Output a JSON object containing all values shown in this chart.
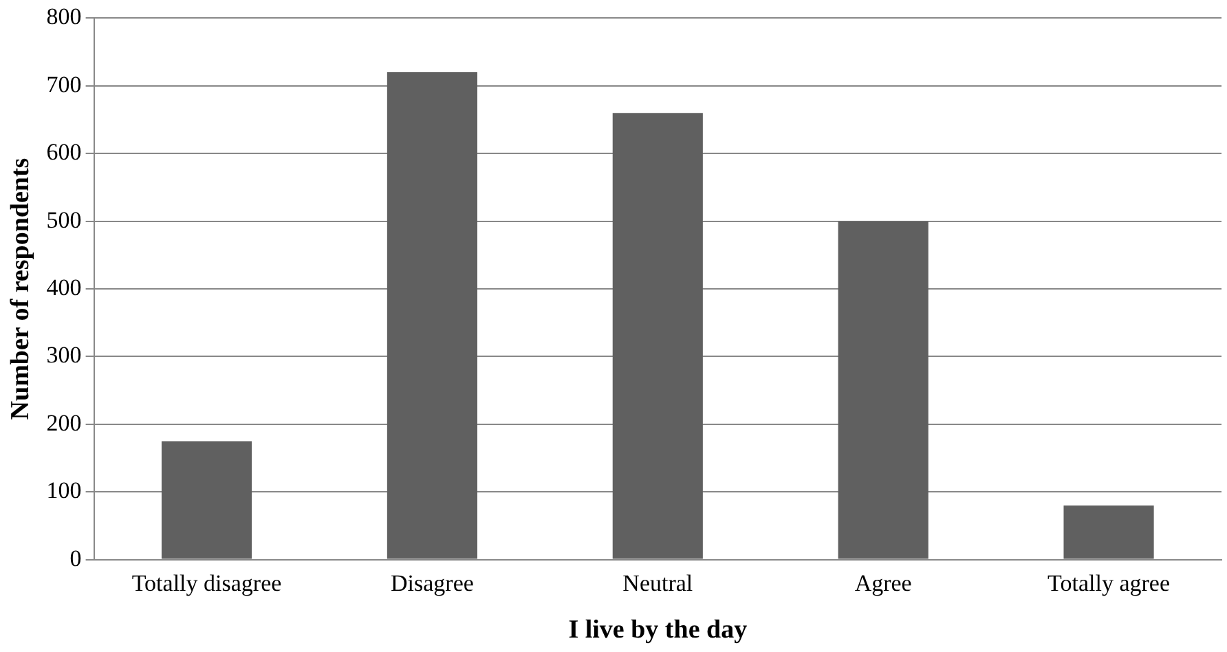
{
  "chart_data": {
    "type": "bar",
    "xlabel": "I live by the day",
    "ylabel": "Number of respondents",
    "categories": [
      "Totally disagree",
      "Disagree",
      "Neutral",
      "Agree",
      "Totally agree"
    ],
    "values": [
      175,
      720,
      660,
      500,
      80
    ],
    "color": "#606060",
    "ylim": [
      0,
      800
    ],
    "yticks": [
      0,
      100,
      200,
      300,
      400,
      500,
      600,
      700,
      800
    ],
    "grid": "y",
    "legend": false
  }
}
